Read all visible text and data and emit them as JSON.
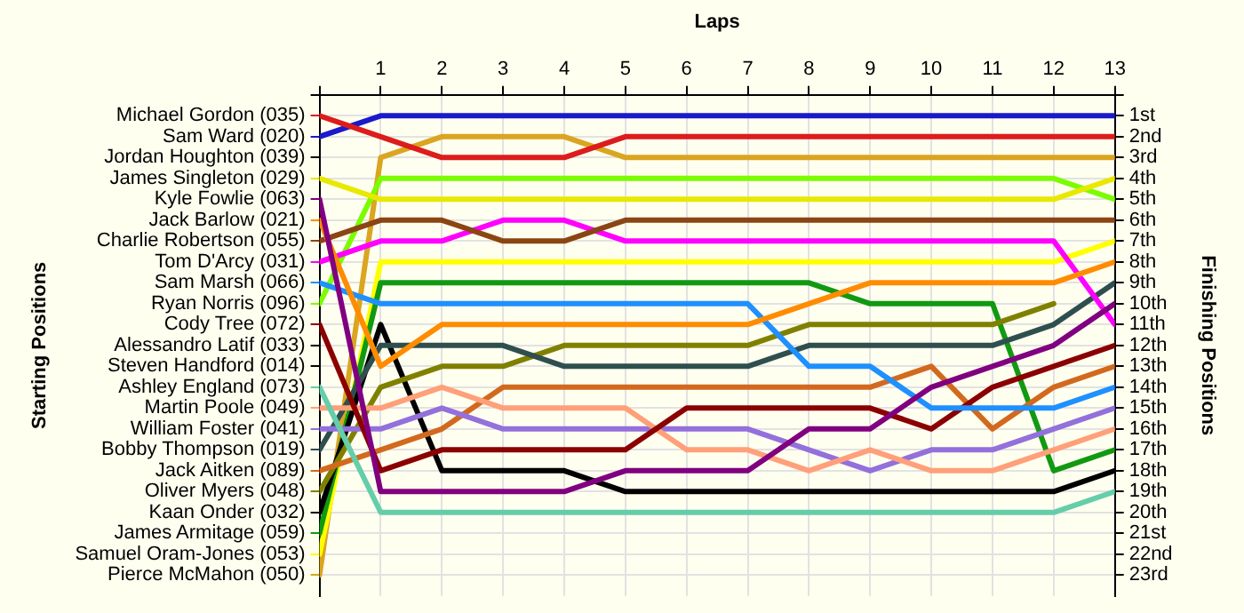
{
  "chart_data": {
    "type": "line",
    "xlabel": "Laps",
    "ylabel": "Finishing Positions",
    "legend_title": "Starting Positions",
    "x": [
      0,
      1,
      2,
      3,
      4,
      5,
      6,
      7,
      8,
      9,
      10,
      11,
      12,
      13
    ],
    "xlim": [
      0,
      13
    ],
    "xticks": [
      {
        "value": 0,
        "label": null
      },
      1,
      2,
      3,
      4,
      5,
      6,
      7,
      8,
      9,
      10,
      11,
      12,
      13
    ],
    "ylim": [
      24,
      0
    ],
    "yticks": [
      {
        "value": 0,
        "label": null
      },
      {
        "value": 1,
        "label": "1st"
      },
      {
        "value": 2,
        "label": "2nd"
      },
      {
        "value": 3,
        "label": "3rd"
      },
      {
        "value": 4,
        "label": "4th"
      },
      {
        "value": 5,
        "label": "5th"
      },
      {
        "value": 6,
        "label": "6th"
      },
      {
        "value": 7,
        "label": "7th"
      },
      {
        "value": 8,
        "label": "8th"
      },
      {
        "value": 9,
        "label": "9th"
      },
      {
        "value": 10,
        "label": "10th"
      },
      {
        "value": 11,
        "label": "11th"
      },
      {
        "value": 12,
        "label": "12th"
      },
      {
        "value": 13,
        "label": "13th"
      },
      {
        "value": 14,
        "label": "14th"
      },
      {
        "value": 15,
        "label": "15th"
      },
      {
        "value": 16,
        "label": "16th"
      },
      {
        "value": 17,
        "label": "17th"
      },
      {
        "value": 18,
        "label": "18th"
      },
      {
        "value": 19,
        "label": "19th"
      },
      {
        "value": 20,
        "label": "20th"
      },
      {
        "value": 21,
        "label": "21st"
      },
      {
        "value": 22,
        "label": "22nd"
      },
      {
        "value": 23,
        "label": "23rd"
      }
    ],
    "annotations": [
      "Jordan Houghton (039)",
      "Alessandro Latif (033)",
      "Steven Handford (014)"
    ],
    "grid": true,
    "legend": "left",
    "marker": "none",
    "line_style": "solid",
    "series": [
      {
        "name": "Michael Gordon (035)",
        "color": "#dd1c1c",
        "values": [
          1,
          2,
          3,
          3,
          3,
          2,
          2,
          2,
          2,
          2,
          2,
          2,
          2,
          2
        ]
      },
      {
        "name": "Sam Ward (020)",
        "color": "#1a1acc",
        "values": [
          2,
          1,
          1,
          1,
          1,
          1,
          1,
          1,
          1,
          1,
          1,
          1,
          1,
          1
        ]
      },
      {
        "name": "James Singleton (029)",
        "color": "#e8e800",
        "values": [
          4,
          5,
          5,
          5,
          5,
          5,
          5,
          5,
          5,
          5,
          5,
          5,
          5,
          4
        ]
      },
      {
        "name": "Kyle Fowlie (063)",
        "color": "#800080",
        "values": [
          5,
          19,
          19,
          19,
          19,
          18,
          18,
          18,
          16,
          16,
          14,
          13,
          12,
          10
        ]
      },
      {
        "name": "Jack Barlow (021)",
        "color": "#ff8c00",
        "values": [
          6,
          13,
          11,
          11,
          11,
          11,
          11,
          11,
          10,
          9,
          9,
          9,
          9,
          8
        ]
      },
      {
        "name": "Charlie Robertson (055)",
        "color": "#8b4513",
        "values": [
          7,
          6,
          6,
          7,
          7,
          6,
          6,
          6,
          6,
          6,
          6,
          6,
          6,
          6
        ]
      },
      {
        "name": "Tom D'Arcy (031)",
        "color": "#ff00ff",
        "values": [
          8,
          7,
          7,
          6,
          6,
          7,
          7,
          7,
          7,
          7,
          7,
          7,
          7,
          11
        ]
      },
      {
        "name": "Sam Marsh (066)",
        "color": "#1e90ff",
        "values": [
          9,
          10,
          10,
          10,
          10,
          10,
          10,
          10,
          13,
          13,
          15,
          15,
          15,
          14
        ]
      },
      {
        "name": "Ryan Norris (096)",
        "color": "#7cfc00",
        "values": [
          10,
          4,
          4,
          4,
          4,
          4,
          4,
          4,
          4,
          4,
          4,
          4,
          4,
          5
        ]
      },
      {
        "name": "Cody Tree (072)",
        "color": "#8b0000",
        "values": [
          11,
          18,
          17,
          17,
          17,
          17,
          15,
          15,
          15,
          15,
          16,
          14,
          13,
          12
        ]
      },
      {
        "name": "Ashley England (073)",
        "color": "#66cdaa",
        "values": [
          14,
          20,
          20,
          20,
          20,
          20,
          20,
          20,
          20,
          20,
          20,
          20,
          20,
          19
        ]
      },
      {
        "name": "Martin Poole (049)",
        "color": "#ffa07a",
        "values": [
          15,
          15,
          14,
          15,
          15,
          15,
          17,
          17,
          18,
          17,
          18,
          18,
          17,
          16
        ]
      },
      {
        "name": "William Foster (041)",
        "color": "#9370db",
        "values": [
          16,
          16,
          15,
          16,
          16,
          16,
          16,
          16,
          17,
          18,
          17,
          17,
          16,
          15
        ]
      },
      {
        "name": "Bobby Thompson (019)",
        "color": "#2f4f4f",
        "values": [
          17,
          12,
          12,
          12,
          13,
          13,
          13,
          13,
          12,
          12,
          12,
          12,
          11,
          9
        ]
      },
      {
        "name": "Jack Aitken (089)",
        "color": "#d2691e",
        "values": [
          18,
          17,
          16,
          14,
          14,
          14,
          14,
          14,
          14,
          14,
          13,
          16,
          14,
          13
        ]
      },
      {
        "name": "Oliver Myers (048)",
        "color": "#808000",
        "values": [
          19,
          14,
          13,
          13,
          12,
          12,
          12,
          12,
          11,
          11,
          11,
          11,
          10,
          null
        ]
      },
      {
        "name": "Kaan Onder (032)",
        "color": "#000000",
        "values": [
          20,
          11,
          18,
          18,
          18,
          19,
          19,
          19,
          19,
          19,
          19,
          19,
          19,
          18
        ]
      },
      {
        "name": "James Armitage (059)",
        "color": "#119911",
        "values": [
          21,
          9,
          9,
          9,
          9,
          9,
          9,
          9,
          9,
          10,
          10,
          10,
          18,
          17
        ]
      },
      {
        "name": "Samuel Oram-Jones (053)",
        "color": "#ffff00",
        "values": [
          22,
          8,
          8,
          8,
          8,
          8,
          8,
          8,
          8,
          8,
          8,
          8,
          8,
          7
        ]
      },
      {
        "name": "Pierce McMahon (050)",
        "color": "#daa520",
        "values": [
          23,
          3,
          2,
          2,
          2,
          3,
          3,
          3,
          3,
          3,
          3,
          3,
          3,
          3
        ]
      }
    ]
  }
}
